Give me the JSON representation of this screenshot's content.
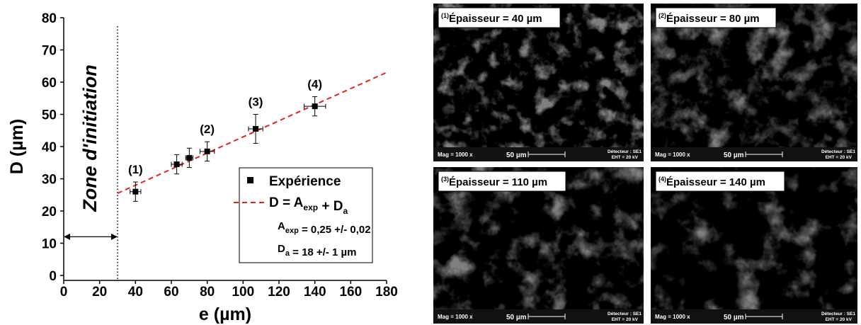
{
  "chart_data": {
    "type": "scatter",
    "xlabel": "e (µm)",
    "ylabel": "D (µm)",
    "xlim": [
      0,
      180
    ],
    "ylim": [
      0,
      80
    ],
    "xticks": [
      0,
      20,
      40,
      60,
      80,
      100,
      120,
      140,
      160,
      180
    ],
    "yticks": [
      0,
      10,
      20,
      30,
      40,
      50,
      60,
      70,
      80
    ],
    "series": [
      {
        "name": "Expérience",
        "color": "#000000",
        "x": [
          40,
          63,
          70,
          80,
          107,
          140
        ],
        "values": [
          26,
          34.5,
          36.5,
          38.5,
          45.5,
          52.5
        ],
        "xerr": [
          3,
          3,
          2,
          4,
          4,
          6
        ],
        "yerr": [
          3,
          3,
          3,
          3,
          4.5,
          3
        ],
        "point_labels": [
          "(1)",
          null,
          null,
          "(2)",
          "(3)",
          "(4)"
        ]
      },
      {
        "color": "#e8211d",
        "x": [
          30,
          180
        ],
        "values": [
          25.5,
          63
        ],
        "label": [
          {
            "text": "D = A",
            "sub": "exp"
          },
          {
            "text": " + D",
            "sub": "a"
          }
        ]
      }
    ],
    "fit_params": [
      [
        {
          "text": "A",
          "sub": "exp"
        },
        {
          "text": " = 0,25 +/- 0,02"
        }
      ],
      [
        {
          "text": "D",
          "sub": "a"
        },
        {
          "text": " = 18 +/- 1 µm"
        }
      ]
    ],
    "zone": {
      "label": "Zone d'initiation",
      "xlim": [
        0,
        30
      ],
      "arrow_y": 12
    }
  },
  "images": [
    {
      "index": "(1)",
      "caption": "Épaisseur = 40 µm",
      "mag": "Mag = 1000 x",
      "scale": "50 µm",
      "detector": "Détecteur : SE1",
      "eht": "EHT = 20 kV"
    },
    {
      "index": "(2)",
      "caption": "Épaisseur = 80 µm",
      "mag": "Mag = 1000 x",
      "scale": "50 µm",
      "detector": "Détecteur : SE1",
      "eht": "EHT = 20 kV"
    },
    {
      "index": "(3)",
      "caption": "Épaisseur = 110 µm",
      "mag": "Mag = 1000 x",
      "scale": "50 µm",
      "detector": "Détecteur : SE1",
      "eht": "EHT = 20 kV"
    },
    {
      "index": "(4)",
      "caption": "Épaisseur = 140 µm",
      "mag": "Mag = 1000 x",
      "scale": "50 µm",
      "detector": "Détecteur : SE1",
      "eht": "EHT = 20 kV"
    }
  ]
}
